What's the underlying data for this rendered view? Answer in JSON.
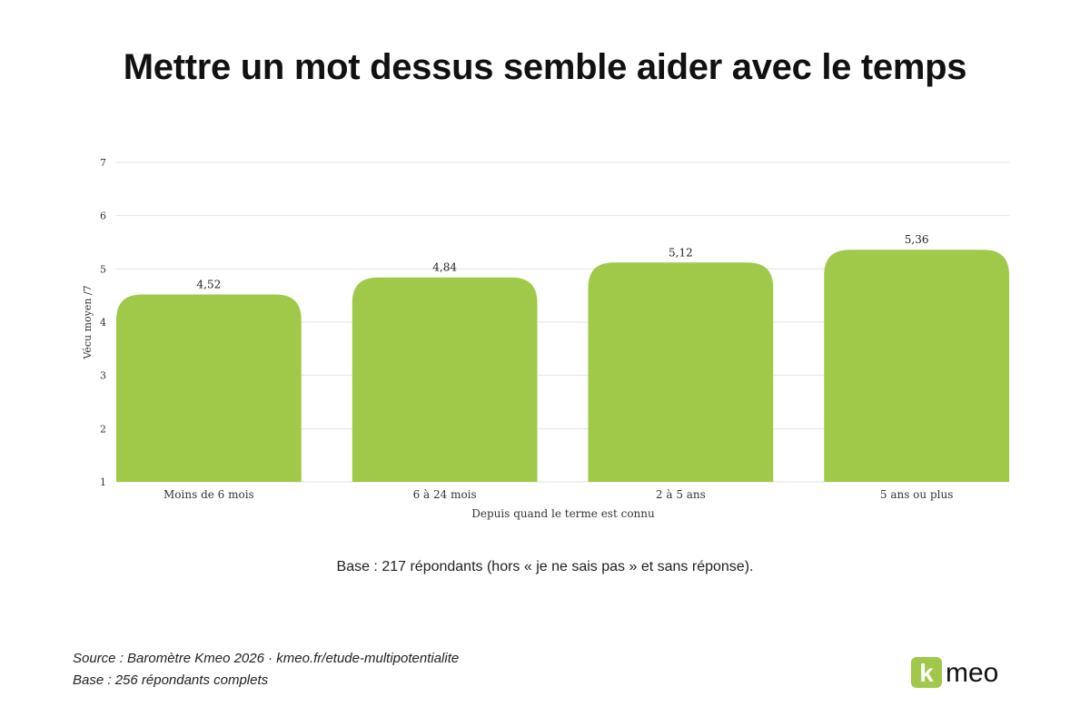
{
  "title": "Mettre un mot dessus semble aider avec le temps",
  "note": "Base : 217 répondants (hors « je ne sais pas » et sans réponse).",
  "footer": {
    "source": "Source : Baromètre Kmeo 2026 · kmeo.fr/etude-multipotentialite",
    "base": "Base : 256 répondants complets"
  },
  "logo": {
    "text": "kmeo",
    "accent": "#a0c94a",
    "ink": "#111111"
  },
  "chart_data": {
    "type": "bar",
    "categories": [
      "Moins de 6 mois",
      "6 à 24 mois",
      "2 à 5 ans",
      "5 ans ou plus"
    ],
    "values": [
      4.52,
      4.84,
      5.12,
      5.36
    ],
    "value_labels": [
      "4,52",
      "4,84",
      "5,12",
      "5,36"
    ],
    "xlabel": "Depuis quand le terme est connu",
    "ylabel": "Vécu moyen /7",
    "ylim": [
      1,
      7
    ],
    "yticks": [
      1,
      2,
      3,
      4,
      5,
      6,
      7
    ],
    "grid": true,
    "bar_color": "#a0c94a"
  }
}
